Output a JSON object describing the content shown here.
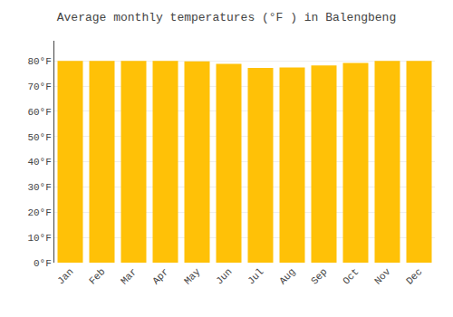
{
  "chart_data": {
    "type": "bar",
    "title": "Average monthly temperatures (°F ) in Balengbeng",
    "categories": [
      "Jan",
      "Feb",
      "Mar",
      "Apr",
      "May",
      "Jun",
      "Jul",
      "Aug",
      "Sep",
      "Oct",
      "Nov",
      "Dec"
    ],
    "values": [
      80.0,
      80.0,
      80.0,
      80.0,
      79.8,
      78.8,
      77.2,
      77.4,
      78.2,
      79.2,
      80.0,
      80.0
    ],
    "color": "#FFC107",
    "ylim": [
      0,
      88
    ],
    "yticks": [
      {
        "value": 0,
        "label": "0°F"
      },
      {
        "value": 10,
        "label": "10°F"
      },
      {
        "value": 20,
        "label": "20°F"
      },
      {
        "value": 30,
        "label": "30°F"
      },
      {
        "value": 40,
        "label": "40°F"
      },
      {
        "value": 50,
        "label": "50°F"
      },
      {
        "value": 60,
        "label": "60°F"
      },
      {
        "value": 70,
        "label": "70°F"
      },
      {
        "value": 80,
        "label": "80°F"
      }
    ],
    "grid": true
  }
}
